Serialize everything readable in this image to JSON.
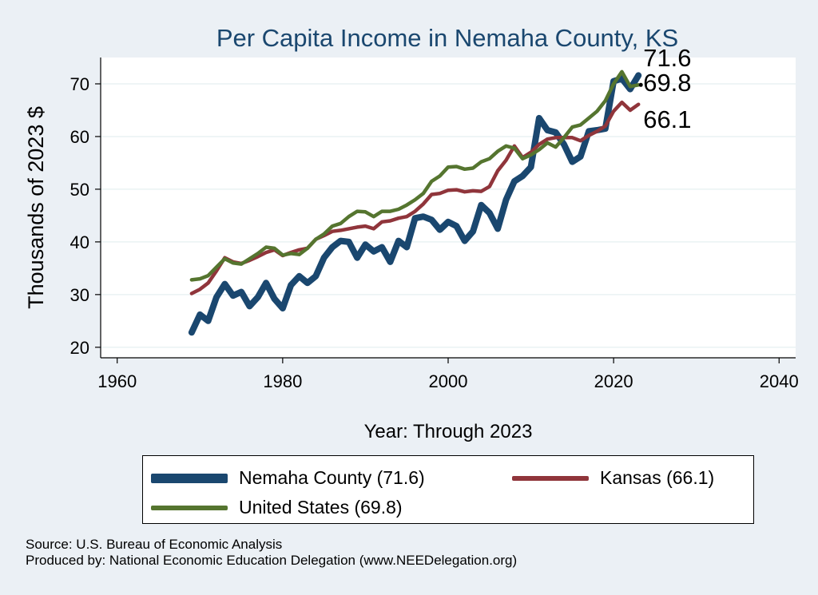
{
  "chart_data": {
    "type": "line",
    "title": "Per Capita Income in Nemaha County, KS",
    "xlabel": "Year: Through 2023",
    "ylabel": "Thousands of 2023 $",
    "xlim": [
      1958,
      2042
    ],
    "ylim": [
      18,
      75
    ],
    "xticks": [
      1960,
      1980,
      2000,
      2020,
      2040
    ],
    "yticks": [
      20,
      30,
      40,
      50,
      60,
      70
    ],
    "grid": true,
    "legend_position": "bottom",
    "x": [
      1969,
      1970,
      1971,
      1972,
      1973,
      1974,
      1975,
      1976,
      1977,
      1978,
      1979,
      1980,
      1981,
      1982,
      1983,
      1984,
      1985,
      1986,
      1987,
      1988,
      1989,
      1990,
      1991,
      1992,
      1993,
      1994,
      1995,
      1996,
      1997,
      1998,
      1999,
      2000,
      2001,
      2002,
      2003,
      2004,
      2005,
      2006,
      2007,
      2008,
      2009,
      2010,
      2011,
      2012,
      2013,
      2014,
      2015,
      2016,
      2017,
      2018,
      2019,
      2020,
      2021,
      2022,
      2023
    ],
    "series": [
      {
        "name": "Nemaha County (71.6)",
        "color": "#1a476f",
        "values": [
          22.8,
          26.2,
          25.0,
          29.5,
          32.0,
          29.8,
          30.5,
          27.8,
          29.5,
          32.2,
          29.2,
          27.4,
          31.8,
          33.5,
          32.2,
          33.5,
          37.0,
          39.0,
          40.2,
          40.0,
          37.0,
          39.5,
          38.2,
          39.0,
          36.2,
          40.2,
          39.0,
          44.5,
          44.8,
          44.2,
          42.3,
          43.8,
          43.0,
          40.2,
          42.0,
          47.0,
          45.5,
          42.5,
          48.0,
          51.5,
          52.5,
          54.2,
          63.5,
          61.2,
          60.8,
          58.5,
          55.2,
          56.2,
          61.0,
          61.2,
          61.5,
          70.5,
          71.0,
          69.0,
          71.6
        ]
      },
      {
        "name": "Kansas (66.1)",
        "color": "#90353b",
        "values": [
          30.2,
          31.0,
          32.2,
          34.5,
          37.0,
          36.2,
          35.9,
          36.5,
          37.2,
          38.0,
          38.5,
          37.4,
          38.0,
          38.5,
          38.8,
          40.5,
          41.2,
          42.0,
          42.2,
          42.5,
          42.8,
          43.0,
          42.5,
          43.8,
          44.0,
          44.5,
          44.8,
          45.8,
          47.2,
          49.0,
          49.2,
          49.8,
          49.9,
          49.5,
          49.7,
          49.6,
          50.5,
          53.5,
          55.5,
          58.2,
          56.0,
          57.0,
          58.5,
          59.5,
          59.8,
          59.8,
          59.8,
          59.2,
          60.2,
          61.0,
          62.0,
          64.8,
          66.5,
          65.0,
          66.1
        ]
      },
      {
        "name": "United States (69.8)",
        "color": "#55752f",
        "values": [
          32.8,
          33.0,
          33.6,
          35.2,
          36.8,
          36.0,
          35.8,
          36.8,
          37.8,
          39.0,
          38.8,
          37.5,
          37.8,
          37.6,
          38.8,
          40.5,
          41.5,
          43.0,
          43.5,
          44.8,
          45.8,
          45.7,
          44.8,
          45.8,
          45.8,
          46.2,
          47.0,
          48.0,
          49.2,
          51.5,
          52.5,
          54.2,
          54.3,
          53.8,
          54.0,
          55.2,
          55.8,
          57.2,
          58.2,
          57.8,
          55.8,
          56.5,
          57.5,
          58.8,
          58.0,
          59.8,
          61.8,
          62.2,
          63.5,
          64.8,
          66.8,
          70.0,
          72.3,
          69.5,
          69.8
        ]
      }
    ],
    "end_labels": [
      "71.6",
      "69.8",
      "66.1"
    ]
  },
  "legend": {
    "items": [
      "Nemaha County (71.6)",
      "Kansas (66.1)",
      "United States (69.8)"
    ]
  },
  "notes": {
    "source": "Source: U.S. Bureau of Economic Analysis",
    "produced": "Produced by: National Economic Education Delegation (www.NEEDelegation.org)"
  }
}
